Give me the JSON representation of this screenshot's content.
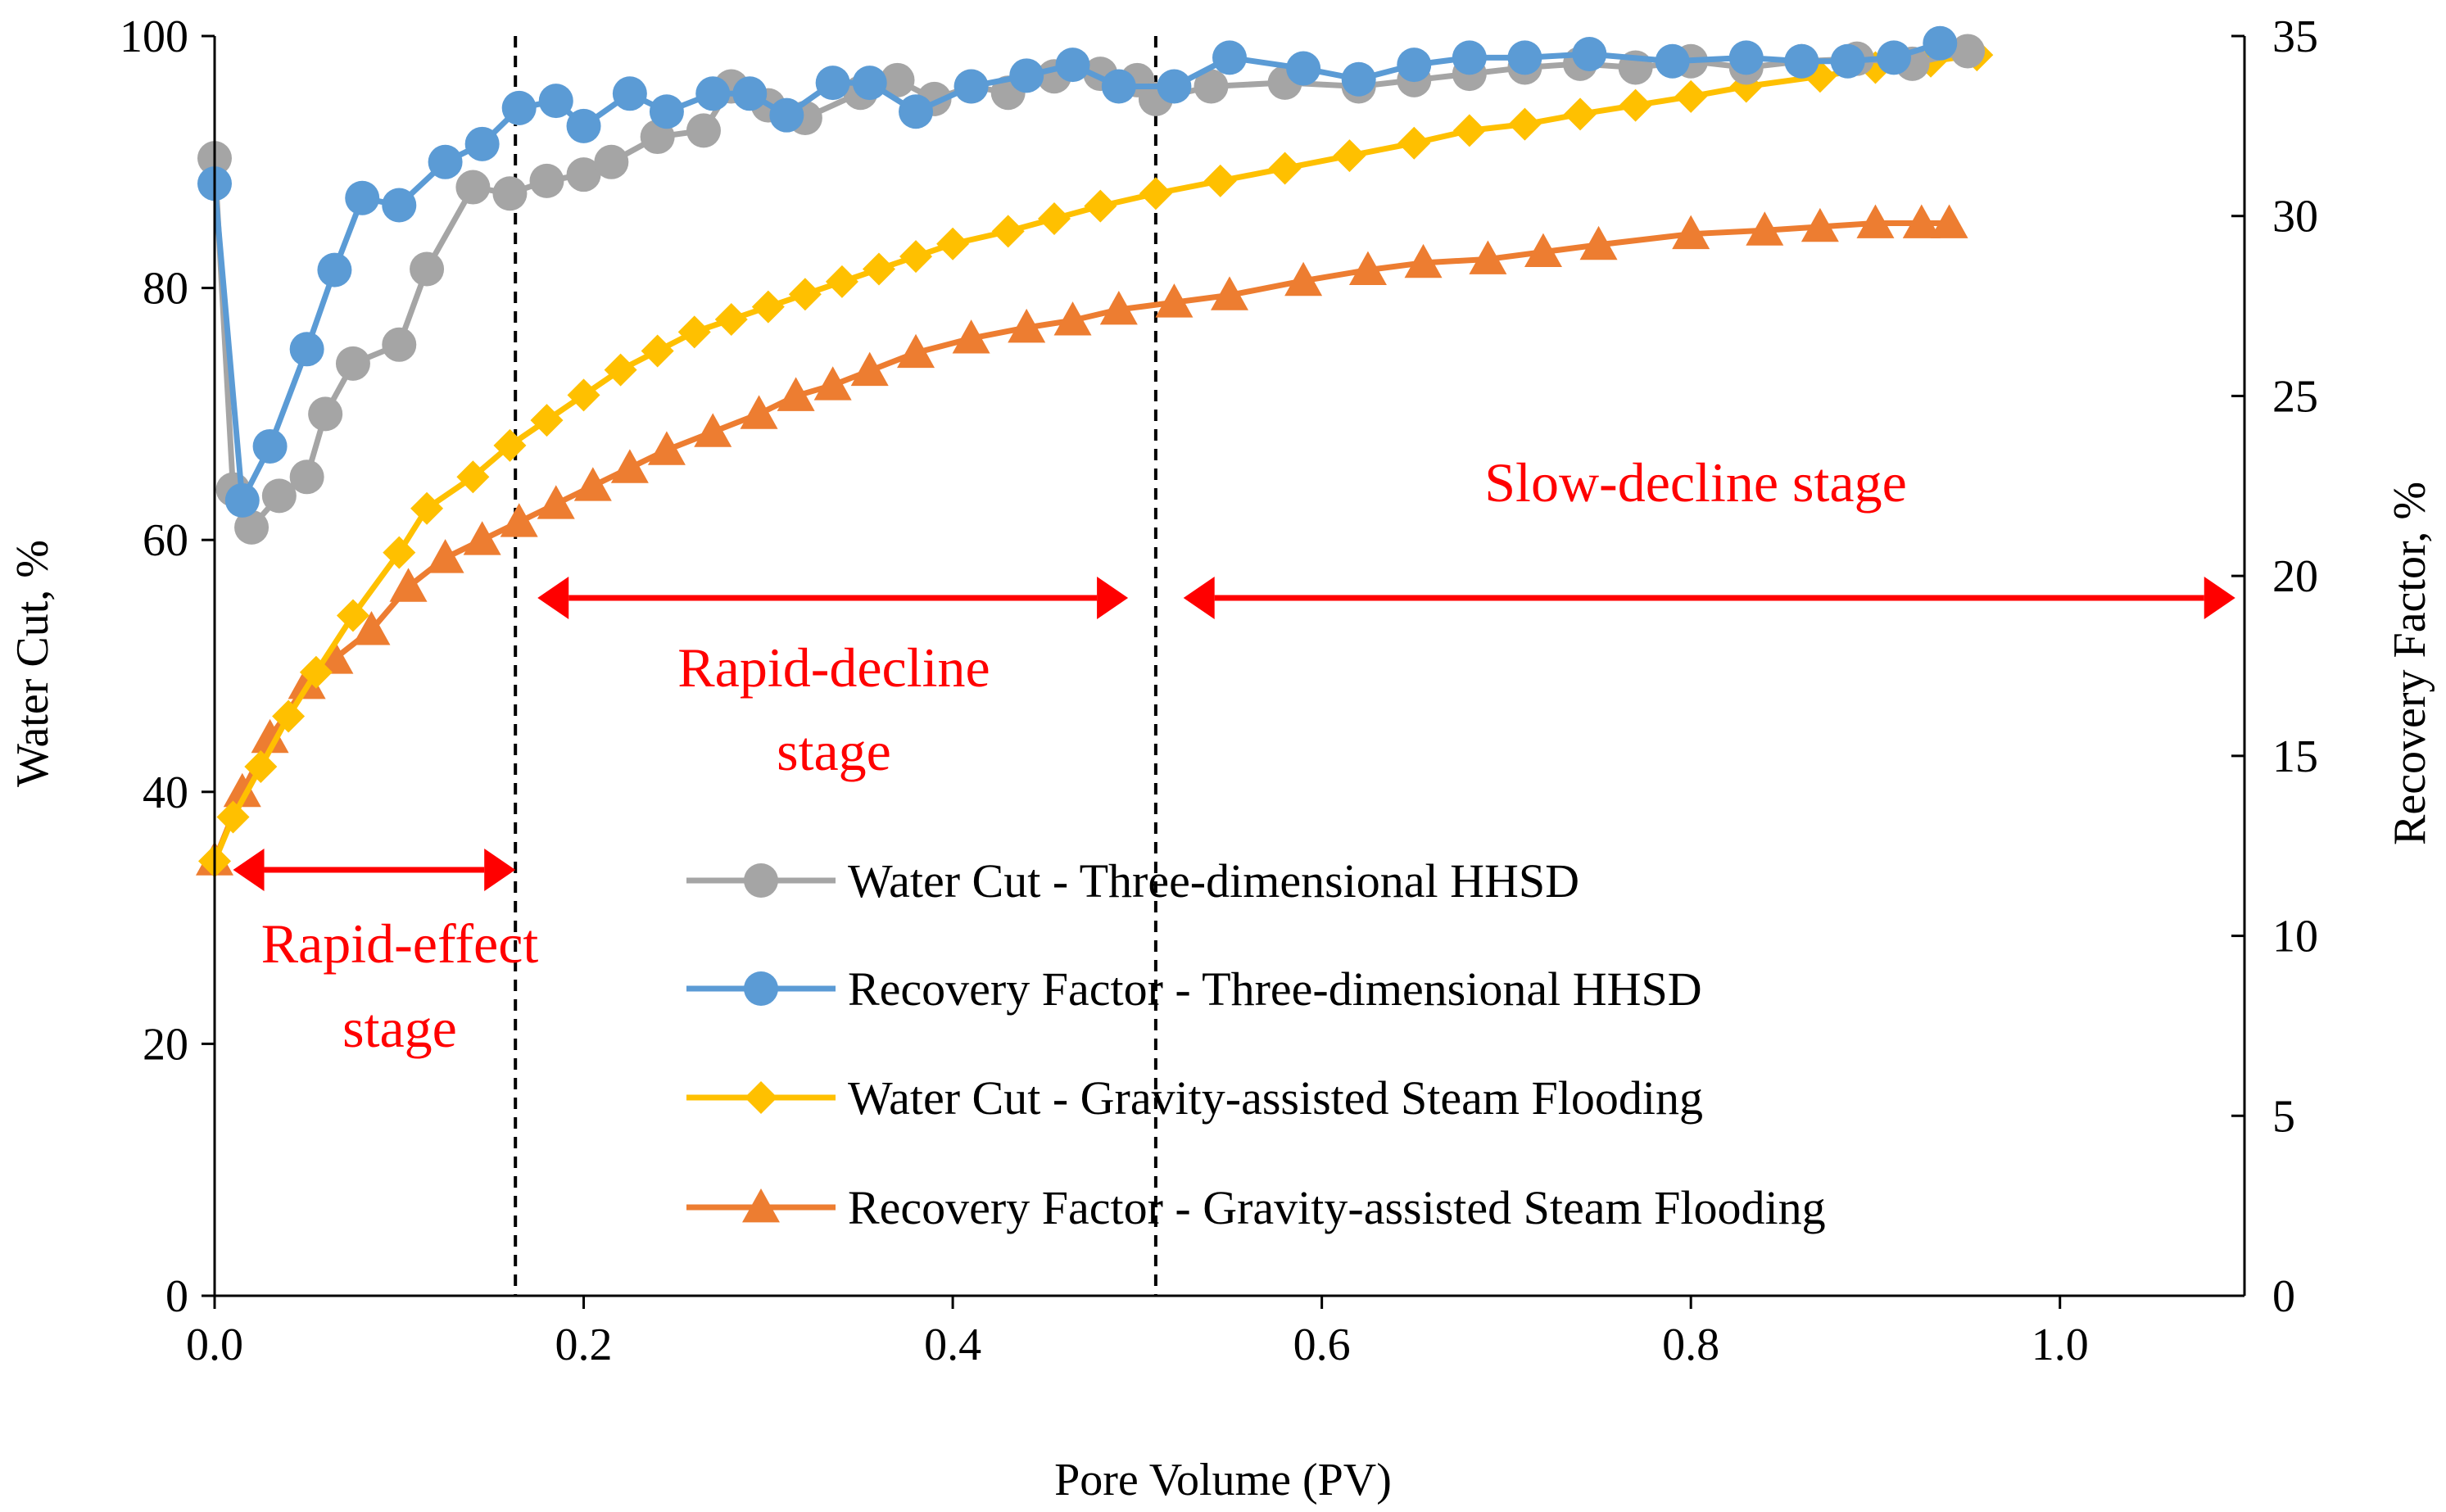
{
  "chart_data": {
    "type": "line",
    "xlabel": "Pore Volume (PV)",
    "ylabel": "Water Cut, %",
    "y2label": "Recovery Factor, %",
    "xlim": [
      0,
      1.1
    ],
    "ylim": [
      0,
      100
    ],
    "y2lim": [
      0,
      35
    ],
    "xticks": [
      "0.0",
      "0.2",
      "0.4",
      "0.6",
      "0.8",
      "1.0"
    ],
    "xtick_values": [
      0,
      0.2,
      0.4,
      0.6,
      0.8,
      1.0
    ],
    "yticks": [
      "0",
      "20",
      "40",
      "60",
      "80",
      "100"
    ],
    "ytick_values": [
      0,
      20,
      40,
      60,
      80,
      100
    ],
    "y2ticks": [
      "0",
      "5",
      "10",
      "15",
      "20",
      "25",
      "30",
      "35"
    ],
    "y2tick_values": [
      0,
      5,
      10,
      15,
      20,
      25,
      30,
      35
    ],
    "grid": false,
    "legend_position": "lower-right",
    "stage_dividers_x": [
      0.163,
      0.51
    ],
    "series": [
      {
        "name": "Water Cut - Three-dimensional HHSD",
        "axis": "left",
        "color": "#a5a5a5",
        "marker": "circle",
        "x": [
          0,
          0.01,
          0.02,
          0.035,
          0.05,
          0.06,
          0.075,
          0.1,
          0.115,
          0.14,
          0.16,
          0.18,
          0.2,
          0.215,
          0.24,
          0.265,
          0.28,
          0.3,
          0.32,
          0.35,
          0.37,
          0.39,
          0.41,
          0.43,
          0.455,
          0.48,
          0.5,
          0.51,
          0.54,
          0.58,
          0.62,
          0.65,
          0.68,
          0.71,
          0.74,
          0.77,
          0.8,
          0.83,
          0.86,
          0.89,
          0.92,
          0.95
        ],
        "values": [
          90.3,
          64,
          61,
          63.5,
          65,
          70,
          74,
          75.5,
          81.5,
          88,
          87.5,
          88.5,
          89,
          90,
          92,
          92.5,
          96,
          94.5,
          93.5,
          95.5,
          96.5,
          95,
          96,
          95.5,
          96.8,
          97,
          96.5,
          95,
          96,
          96.3,
          96,
          96.5,
          97,
          97.5,
          97.8,
          97.5,
          98,
          97.5,
          98,
          98.2,
          97.8,
          98.8
        ]
      },
      {
        "name": "Recovery Factor - Three-dimensional HHSD",
        "axis": "right",
        "color": "#5b9bd5",
        "marker": "circle",
        "x": [
          0,
          0.015,
          0.03,
          0.05,
          0.065,
          0.08,
          0.1,
          0.125,
          0.145,
          0.165,
          0.185,
          0.2,
          0.225,
          0.245,
          0.27,
          0.29,
          0.31,
          0.335,
          0.355,
          0.38,
          0.41,
          0.44,
          0.465,
          0.49,
          0.52,
          0.55,
          0.59,
          0.62,
          0.65,
          0.68,
          0.71,
          0.745,
          0.79,
          0.83,
          0.86,
          0.885,
          0.91,
          0.935
        ],
        "values": [
          30.9,
          22.1,
          23.6,
          26.3,
          28.5,
          30.5,
          30.3,
          31.5,
          32,
          33,
          33.2,
          32.5,
          33.4,
          32.9,
          33.4,
          33.4,
          32.8,
          33.7,
          33.7,
          32.9,
          33.6,
          33.9,
          34.2,
          33.6,
          33.6,
          34.4,
          34.1,
          33.8,
          34.2,
          34.4,
          34.4,
          34.5,
          34.3,
          34.4,
          34.3,
          34.3,
          34.4,
          34.8
        ]
      },
      {
        "name": "Water Cut - Gravity-assisted Steam Flooding",
        "axis": "left",
        "color": "#ffc000",
        "marker": "diamond",
        "x": [
          0,
          0.01,
          0.025,
          0.04,
          0.055,
          0.075,
          0.1,
          0.115,
          0.14,
          0.16,
          0.18,
          0.2,
          0.22,
          0.24,
          0.26,
          0.28,
          0.3,
          0.32,
          0.34,
          0.36,
          0.38,
          0.4,
          0.43,
          0.455,
          0.48,
          0.51,
          0.545,
          0.58,
          0.615,
          0.65,
          0.68,
          0.71,
          0.74,
          0.77,
          0.8,
          0.83,
          0.87,
          0.9,
          0.93,
          0.955
        ],
        "values": [
          34.5,
          38,
          42,
          46,
          49.5,
          54,
          59,
          62.5,
          65,
          67.5,
          69.5,
          71.5,
          73.5,
          75,
          76.5,
          77.5,
          78.5,
          79.5,
          80.5,
          81.5,
          82.5,
          83.5,
          84.5,
          85.5,
          86.5,
          87.5,
          88.5,
          89.5,
          90.5,
          91.5,
          92.5,
          93,
          93.8,
          94.5,
          95.2,
          96,
          96.8,
          97.5,
          98,
          98.5
        ]
      },
      {
        "name": "Recovery Factor - Gravity-assisted Steam Flooding",
        "axis": "right",
        "color": "#ed7d31",
        "marker": "triangle",
        "x": [
          0,
          0.015,
          0.03,
          0.05,
          0.065,
          0.085,
          0.105,
          0.125,
          0.145,
          0.165,
          0.185,
          0.205,
          0.225,
          0.245,
          0.27,
          0.295,
          0.315,
          0.335,
          0.355,
          0.38,
          0.41,
          0.44,
          0.465,
          0.49,
          0.52,
          0.55,
          0.59,
          0.625,
          0.655,
          0.69,
          0.72,
          0.75,
          0.8,
          0.84,
          0.87,
          0.9,
          0.925,
          0.94
        ],
        "values": [
          12.1,
          14,
          15.5,
          17,
          17.7,
          18.5,
          19.7,
          20.5,
          21,
          21.5,
          22,
          22.5,
          23,
          23.5,
          24,
          24.5,
          25,
          25.3,
          25.7,
          26.2,
          26.6,
          26.9,
          27.1,
          27.4,
          27.6,
          27.8,
          28.2,
          28.5,
          28.7,
          28.8,
          29,
          29.2,
          29.5,
          29.6,
          29.7,
          29.8,
          29.8,
          29.8
        ]
      }
    ],
    "annotations": [
      {
        "name": "rapid-effect",
        "lines": [
          "Rapid-effect",
          "stage"
        ],
        "span": [
          0.01,
          0.163
        ]
      },
      {
        "name": "rapid-decline",
        "lines": [
          "Rapid-decline",
          "stage"
        ],
        "span": [
          0.175,
          0.495
        ]
      },
      {
        "name": "slow-decline",
        "lines": [
          "Slow-decline stage"
        ],
        "span": [
          0.525,
          1.095
        ]
      }
    ],
    "annotation_color": "#ff0000"
  }
}
